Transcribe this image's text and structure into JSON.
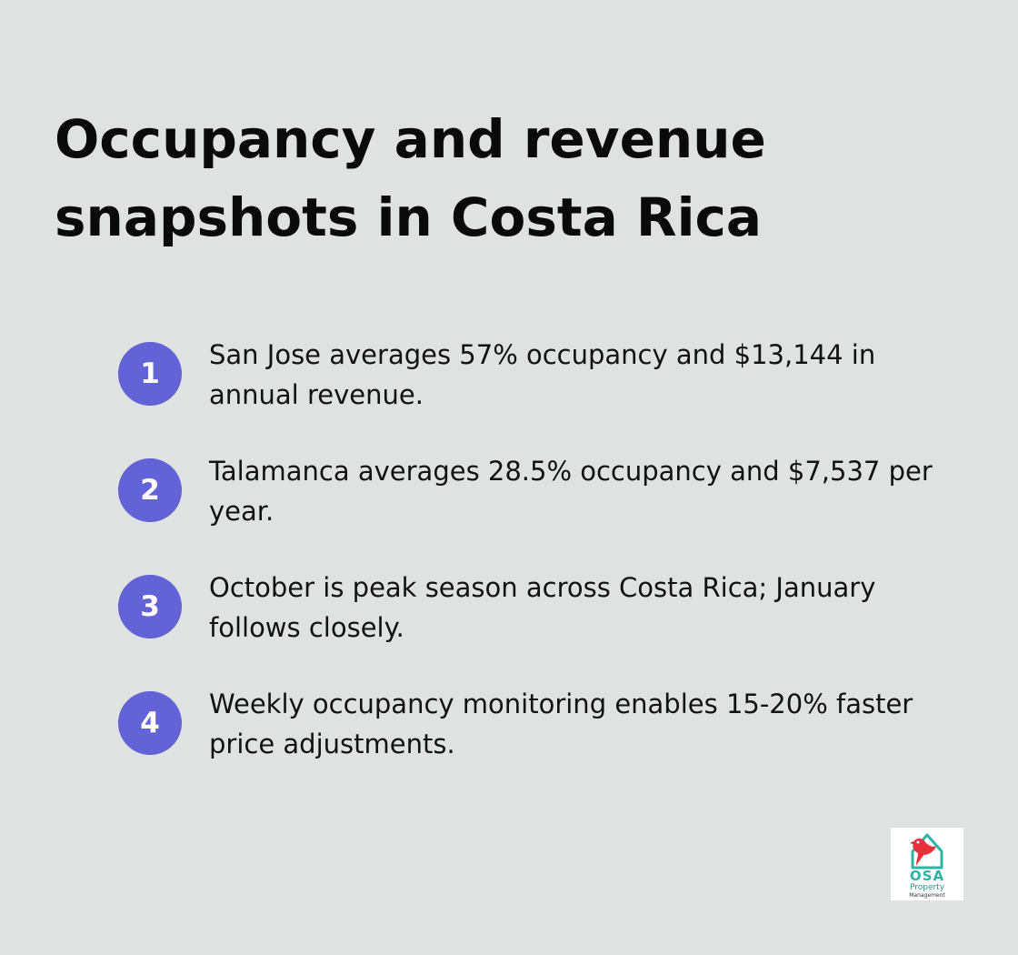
{
  "header": {
    "title": "Occupancy and revenue snapshots in Costa Rica"
  },
  "items": [
    {
      "number": "1",
      "text": "San Jose averages 57% occupancy and $13,144 in annual revenue."
    },
    {
      "number": "2",
      "text": "Talamanca averages 28.5% occupancy and $7,537 per year."
    },
    {
      "number": "3",
      "text": "October is peak season across Costa Rica; January follows closely."
    },
    {
      "number": "4",
      "text": "Weekly occupancy monitoring enables 15-20% faster price adjustments."
    }
  ],
  "logo": {
    "name": "OSA",
    "line1": "Property",
    "line2": "Management",
    "icon": "house-parrot-icon"
  },
  "colors": {
    "background": "#e0e2e1",
    "badge": "#6163d6",
    "logo_teal": "#2bb5a7",
    "logo_red": "#e8303a"
  }
}
